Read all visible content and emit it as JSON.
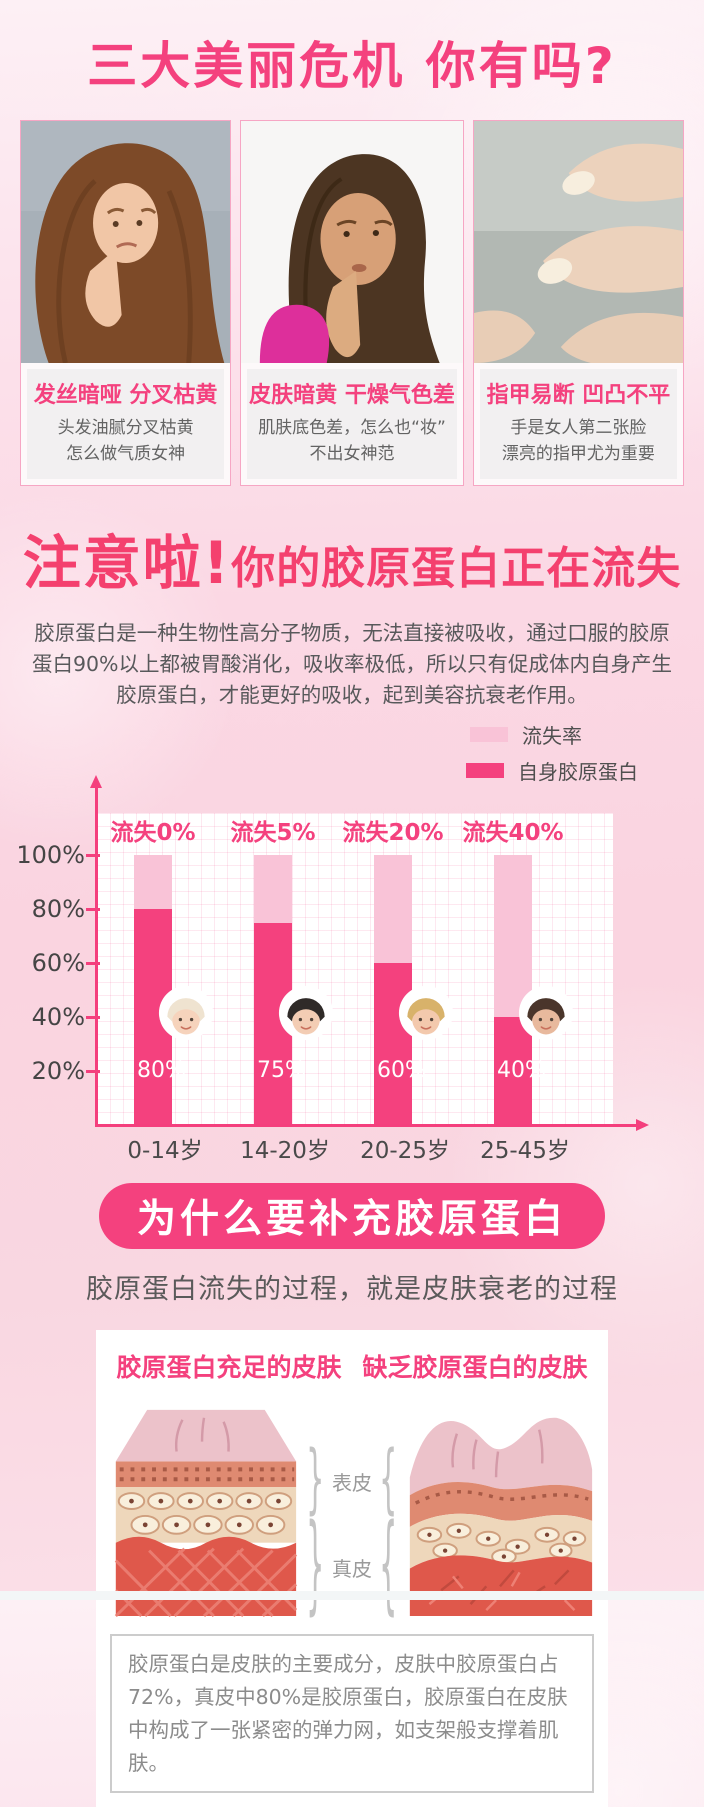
{
  "hero": {
    "title": "三大美丽危机 你有吗?"
  },
  "crisis_cards": [
    {
      "title": "发丝暗哑 分叉枯黄",
      "desc_line1": "头发油腻分叉枯黄",
      "desc_line2": "怎么做气质女神",
      "image": "dull-hair-photo"
    },
    {
      "title": "皮肤暗黄 干燥气色差",
      "desc_line1": "肌肤底色差，怎么也“妆”",
      "desc_line2": "不出女神范",
      "image": "dull-skin-photo"
    },
    {
      "title": "指甲易断 凹凸不平",
      "desc_line1": "手是女人第二张脸",
      "desc_line2": "漂亮的指甲尤为重要",
      "image": "brittle-nails-photo"
    }
  ],
  "alert": {
    "title_emphasis": "注意啦!",
    "title_rest": "你的胶原蛋白正在流失",
    "paragraph": "胶原蛋白是一种生物性高分子物质，无法直接被吸收，通过口服的胶原蛋白90%以上都被胃酸消化，吸收率极低，所以只有促成体内自身产生胶原蛋白，才能更好的吸收，起到美容抗衰老作用。"
  },
  "chart_data": {
    "type": "bar",
    "categories": [
      "0-14岁",
      "14-20岁",
      "20-25岁",
      "25-45岁"
    ],
    "series": [
      {
        "name": "流失率",
        "color": "#f9c3d7",
        "values": [
          100,
          100,
          100,
          100
        ]
      },
      {
        "name": "自身胶原蛋白",
        "color": "#f4417e",
        "values": [
          80,
          75,
          60,
          40
        ]
      }
    ],
    "loss_labels": [
      "流失0%",
      "流失5%",
      "流失20%",
      "流失40%"
    ],
    "bar_value_labels": [
      "80%",
      "75%",
      "60%",
      "40%"
    ],
    "ytick_labels": [
      "100%",
      "80%",
      "60%",
      "40%",
      "20%"
    ],
    "ytick_values": [
      100,
      80,
      60,
      40,
      20
    ],
    "ylim": [
      0,
      100
    ],
    "grid": true,
    "legend_position": "top-right"
  },
  "faces": [
    {
      "name": "baby-face-icon",
      "hair": "#efe3d0",
      "skin": "#f6d3bc"
    },
    {
      "name": "teen-girl-face-icon",
      "hair": "#2f2a28",
      "skin": "#f3cdb4"
    },
    {
      "name": "young-woman-face-icon",
      "hair": "#d8b26a",
      "skin": "#f3c9ad"
    },
    {
      "name": "mature-woman-face-icon",
      "hair": "#4a352b",
      "skin": "#e8b99d"
    }
  ],
  "why": {
    "pill_label": "为什么要补充胶原蛋白",
    "subtitle": "胶原蛋白流失的过程，就是皮肤衰老的过程"
  },
  "skin_panel": {
    "left_title": "胶原蛋白充足的皮肤",
    "right_title": "缺乏胶原蛋白的皮肤",
    "epidermis_label": "表皮",
    "dermis_label": "真皮",
    "brace_left": "}",
    "brace_right": "{",
    "note": "胶原蛋白是皮肤的主要成分，皮肤中胶原蛋白占72%，真皮中80%是胶原蛋白，胶原蛋白在皮肤中构成了一张紧密的弹力网，如支架般支撑着肌肤。"
  },
  "colors": {
    "accent": "#f4417e",
    "loss_bar": "#f9c3d7",
    "self_bar": "#f4417e",
    "body_text": "#58595b",
    "note_text": "#8c8c8c"
  }
}
